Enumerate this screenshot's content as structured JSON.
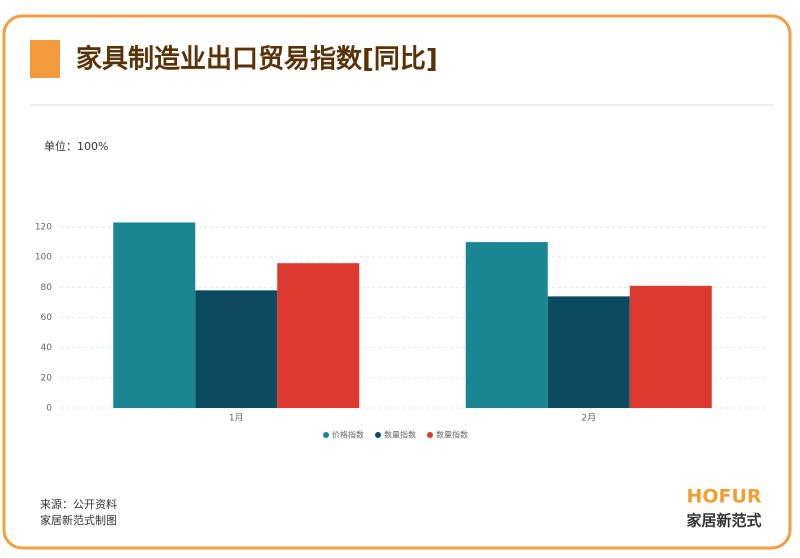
{
  "chart_data": {
    "type": "bar",
    "title": "家具制造业出口贸易指数[同比]",
    "unit_label": "单位：100%",
    "categories": [
      "1月",
      "2月"
    ],
    "series": [
      {
        "name": "价格指数",
        "color": "#1a8692",
        "values": [
          123,
          110
        ]
      },
      {
        "name": "数量指数",
        "color": "#0c4b5f",
        "values": [
          78,
          74
        ]
      },
      {
        "name": "数量指数",
        "color": "#dc3a2f",
        "values": [
          96,
          81
        ]
      }
    ],
    "ylim": [
      0,
      120
    ],
    "yticks": [
      0,
      20,
      40,
      60,
      80,
      100,
      120
    ],
    "grid": true,
    "legend": "bottom"
  },
  "footer": {
    "source": "来源：公开资料",
    "credit": "家居新范式制图"
  },
  "logo": {
    "brand": "HOFUR",
    "name": "家居新范式"
  }
}
